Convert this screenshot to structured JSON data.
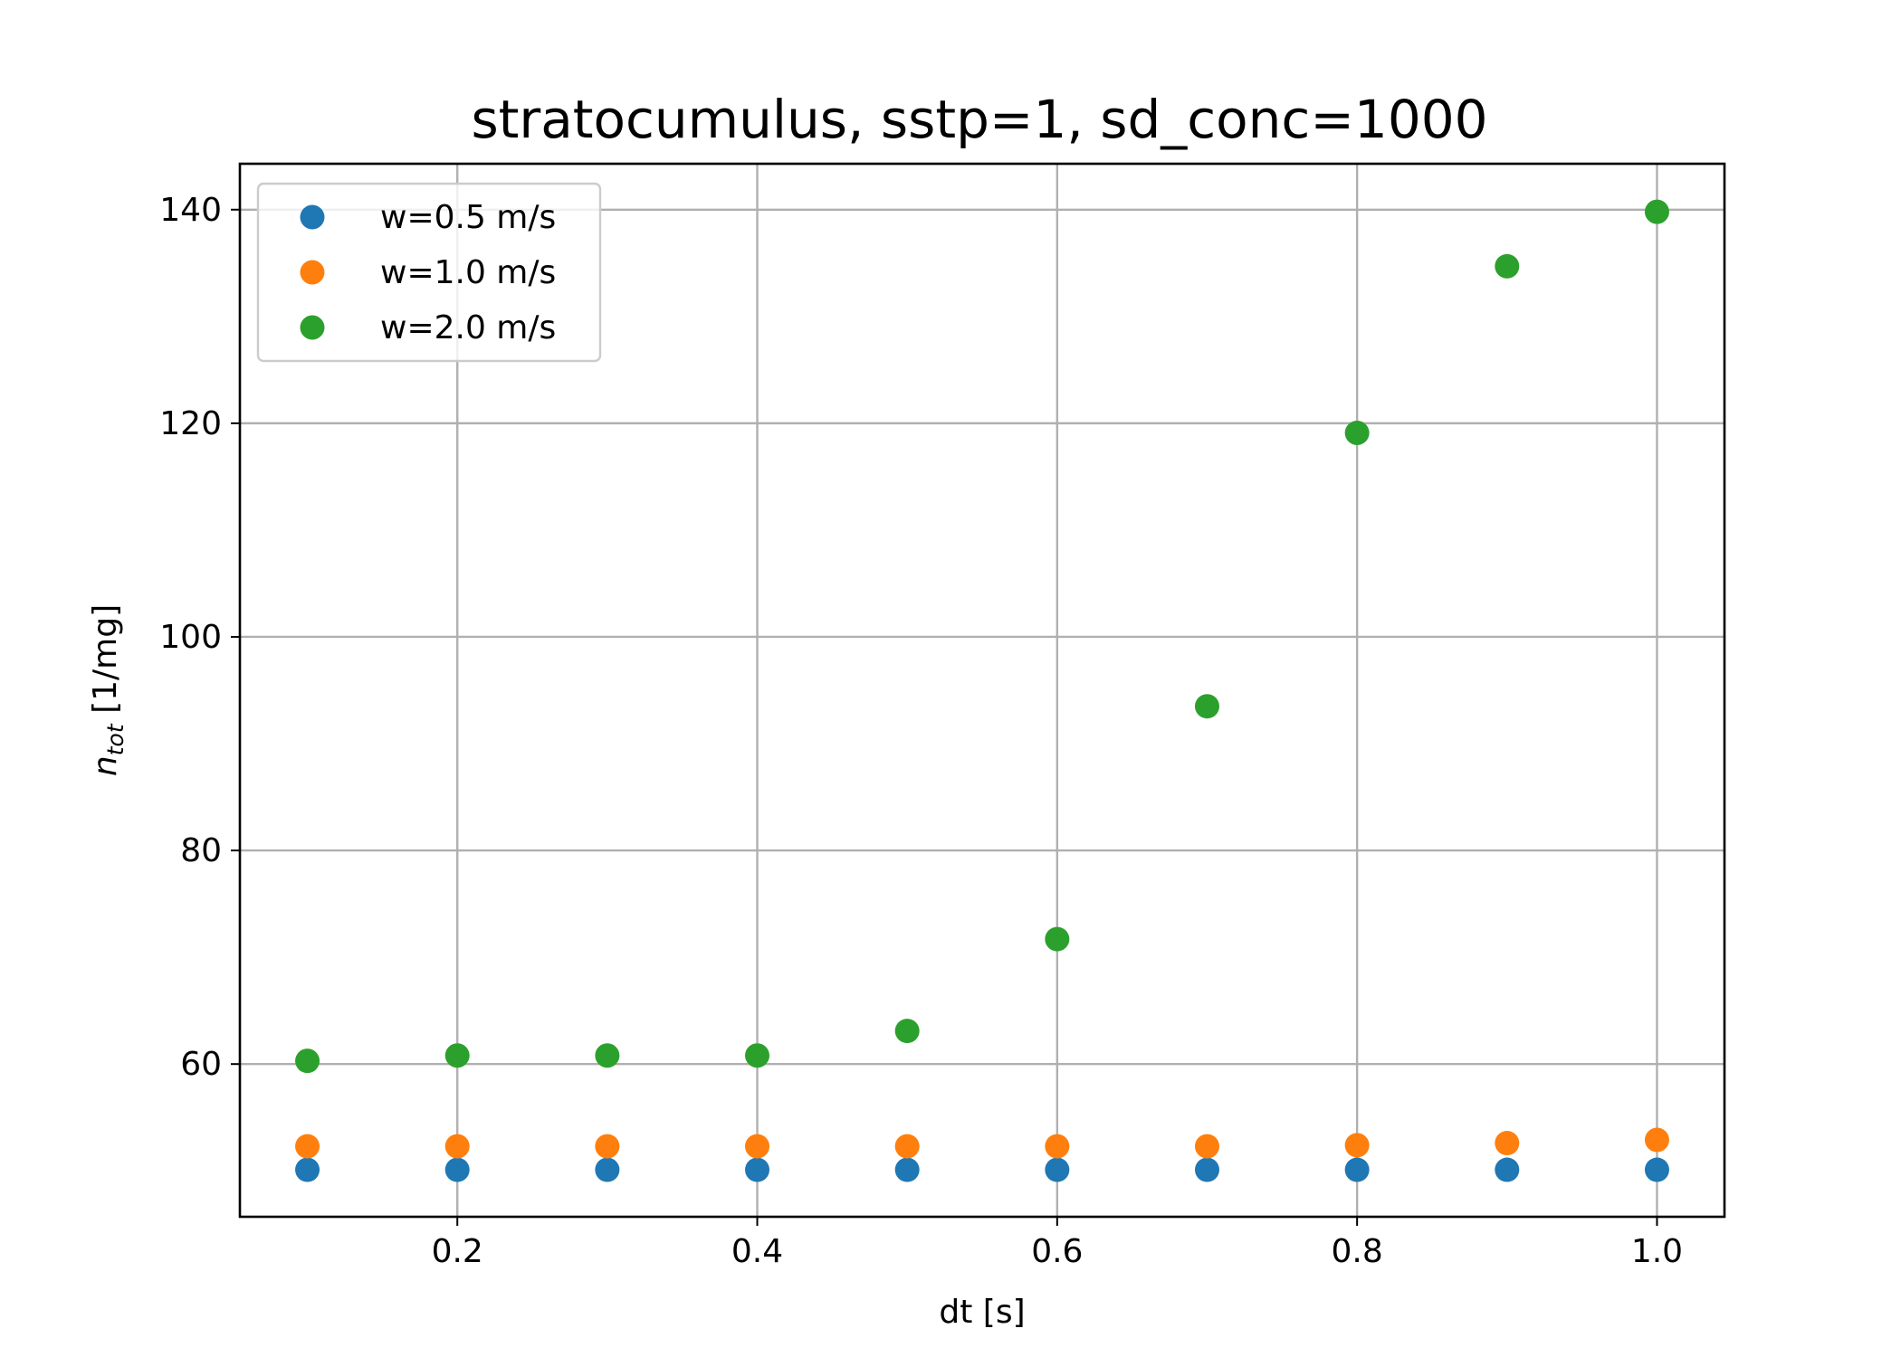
{
  "chart_data": {
    "type": "scatter",
    "title": "stratocumulus, sstp=1, sd_conc=1000",
    "xlabel": "dt [s]",
    "ylabel_main": "n",
    "ylabel_sub": "tot",
    "ylabel_unit": " [1/mg]",
    "xlim": [
      0.055,
      1.045
    ],
    "ylim": [
      45.7,
      144.3
    ],
    "xticks": [
      0.2,
      0.4,
      0.6,
      0.8,
      1.0
    ],
    "xtick_labels": [
      "0.2",
      "0.4",
      "0.6",
      "0.8",
      "1.0"
    ],
    "yticks": [
      60,
      80,
      100,
      120,
      140
    ],
    "ytick_labels": [
      "60",
      "80",
      "100",
      "120",
      "140"
    ],
    "grid": true,
    "legend_position": "top-left",
    "x": [
      0.1,
      0.2,
      0.3,
      0.4,
      0.5,
      0.6,
      0.7,
      0.8,
      0.9,
      1.0
    ],
    "series": [
      {
        "name": "w=0.5 m/s",
        "color": "#1f77b4",
        "values": [
          50.1,
          50.1,
          50.1,
          50.1,
          50.1,
          50.1,
          50.1,
          50.1,
          50.1,
          50.1
        ]
      },
      {
        "name": "w=1.0 m/s",
        "color": "#ff7f0e",
        "values": [
          52.3,
          52.3,
          52.3,
          52.3,
          52.3,
          52.3,
          52.3,
          52.4,
          52.6,
          52.9
        ]
      },
      {
        "name": "w=2.0 m/s",
        "color": "#2ca02c",
        "values": [
          60.3,
          60.8,
          60.8,
          60.8,
          63.1,
          71.7,
          93.5,
          119.1,
          134.7,
          139.8
        ]
      }
    ]
  }
}
